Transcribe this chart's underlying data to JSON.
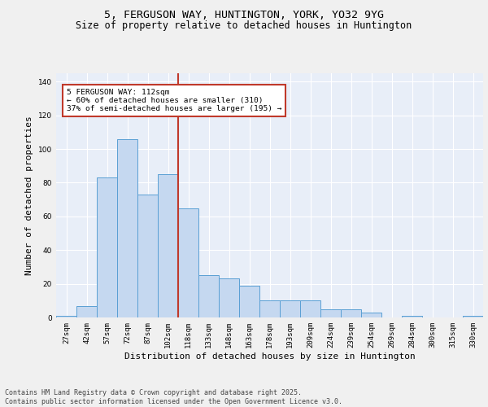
{
  "title_line1": "5, FERGUSON WAY, HUNTINGTON, YORK, YO32 9YG",
  "title_line2": "Size of property relative to detached houses in Huntington",
  "xlabel": "Distribution of detached houses by size in Huntington",
  "ylabel": "Number of detached properties",
  "categories": [
    "27sqm",
    "42sqm",
    "57sqm",
    "72sqm",
    "87sqm",
    "102sqm",
    "118sqm",
    "133sqm",
    "148sqm",
    "163sqm",
    "178sqm",
    "193sqm",
    "209sqm",
    "224sqm",
    "239sqm",
    "254sqm",
    "269sqm",
    "284sqm",
    "300sqm",
    "315sqm",
    "330sqm"
  ],
  "values": [
    1,
    7,
    83,
    106,
    73,
    85,
    65,
    25,
    23,
    19,
    10,
    10,
    10,
    5,
    5,
    3,
    0,
    1,
    0,
    0,
    1
  ],
  "bar_color": "#c5d8f0",
  "bar_edge_color": "#5a9fd4",
  "vline_x": 5.5,
  "vline_color": "#c0392b",
  "annotation_text": "5 FERGUSON WAY: 112sqm\n← 60% of detached houses are smaller (310)\n37% of semi-detached houses are larger (195) →",
  "annotation_box_color": "#ffffff",
  "annotation_box_edge": "#c0392b",
  "ylim": [
    0,
    145
  ],
  "yticks": [
    0,
    20,
    40,
    60,
    80,
    100,
    120,
    140
  ],
  "footer": "Contains HM Land Registry data © Crown copyright and database right 2025.\nContains public sector information licensed under the Open Government Licence v3.0.",
  "bg_color": "#e8eef8",
  "grid_color": "#ffffff",
  "fig_bg_color": "#f0f0f0",
  "title_fontsize": 9.5,
  "subtitle_fontsize": 8.5,
  "axis_label_fontsize": 8,
  "tick_fontsize": 6.5,
  "annotation_fontsize": 6.8,
  "footer_fontsize": 6
}
